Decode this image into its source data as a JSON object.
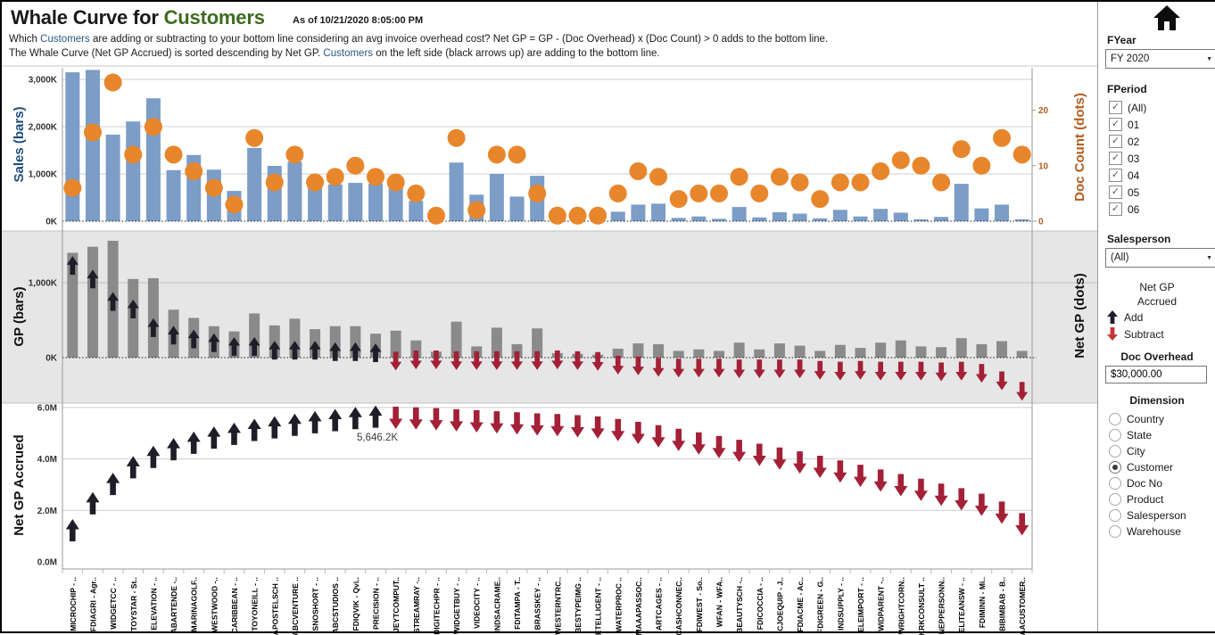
{
  "header": {
    "title_prefix": "Whale Curve for ",
    "title_dimension": "Customers",
    "as_of": "As of  10/21/2020 8:05:00 PM",
    "subtitle1_pre": "Which ",
    "subtitle1_link": "Customers",
    "subtitle1_rest": " are adding or subtracting to your bottom line considering an avg invoice overhead cost? Net GP = GP - (Doc Overhead)  x  (Doc Count) > 0 adds to the bottom line.",
    "subtitle2_pre": "The Whale Curve (Net GP Accrued) is sorted descending by Net GP.  ",
    "subtitle2_link": "Customers",
    "subtitle2_rest": " on the left side (black arrows up) are adding to the bottom line."
  },
  "filters": {
    "fyear": {
      "label": "FYear",
      "value": "FY 2020"
    },
    "fperiod": {
      "label": "FPeriod",
      "options": [
        {
          "label": "(All)",
          "checked": true
        },
        {
          "label": "01",
          "checked": true
        },
        {
          "label": "02",
          "checked": true
        },
        {
          "label": "03",
          "checked": true
        },
        {
          "label": "04",
          "checked": true
        },
        {
          "label": "05",
          "checked": true
        },
        {
          "label": "06",
          "checked": true
        }
      ]
    },
    "salesperson": {
      "label": "Salesperson",
      "value": "(All)"
    },
    "legend": {
      "title_line1": "Net GP",
      "title_line2": "Accrued",
      "add_label": "Add",
      "subtract_label": "Subtract"
    },
    "doc_overhead": {
      "label": "Doc Overhead",
      "value": "$30,000.00"
    },
    "dimension": {
      "label": "Dimension",
      "selected": "Customer",
      "options": [
        "Country",
        "State",
        "City",
        "Customer",
        "Doc No",
        "Product",
        "Salesperson",
        "Warehouse"
      ]
    }
  },
  "colors": {
    "sales_bar": "#7b9dc7",
    "doc_dot": "#e8862c",
    "gp_bar": "#8a8a8a",
    "arrow_up": "#1e1e28",
    "arrow_down": "#a32036",
    "legend_down_red": "#c63636",
    "title_green": "#3e6b21",
    "link_blue": "#2a5783",
    "sales_axis_blue": "#1f4e79",
    "doc_axis_orange": "#b35c1d",
    "band_gray": "#e6e6e6",
    "grid": "#cfcfcf"
  },
  "chart_data": {
    "type": "composite",
    "sorted_by": "Net GP descending",
    "categories": [
      "MICROCHIP - ..",
      "FDIAGRI - Agr..",
      "WIDGETCC - ..",
      "TOYSTAR - St..",
      "ELEVATION - ..",
      "ABARTENDE -..",
      "MARINAGOLF..",
      "WESTWOOD -..",
      "CARIBBEAN - ..",
      "TOYONEILL - ..",
      "APOSTELSCH ..",
      "ABCVENTURE ..",
      "SNOSHORT - ..",
      "ABCSTUDIOS ..",
      "FDIQVIK - Qvi..",
      "PRECISION - ..",
      "JEYTCOMPUT..",
      "STREAMRAY -..",
      "DIGITECHPR - ..",
      "WIDGETBUY - ..",
      "VIDEOCITY - ..",
      "INDSACRAME..",
      "FDITAMPA - T..",
      "BRASSKEY - ..",
      "WESTERNTRC..",
      "BESTYPEIMG ..",
      "ETELLIGENT - ..",
      "WATERPROC ..",
      "MAAAPASSOC..",
      "ARTCAGES - ..",
      "CASHCONNEC..",
      "FDIWEST - So..",
      "WFAN - WFA..",
      "BEAUTYSCH -..",
      "FDICOCCIA - ..",
      "CJOEQUIP - J..",
      "FDIACME - Ac..",
      "FDIGREEN - G..",
      "INDSUPPLY - ..",
      "ELEIMPORT - ..",
      "WIDPARENT -..",
      "WRIGHTCORN..",
      "KRKCONSULT ..",
      "NEPPERSONN..",
      "ELITEANSW - ..",
      "FDIMINN - Mi..",
      "BIBIMBAB - B..",
      "AACUSTOMER.."
    ],
    "panels": [
      {
        "name": "sales-and-doc-count",
        "type": "bar",
        "ylabel_left": "Sales (bars)",
        "ylabel_right": "Doc Count (dots)",
        "y_left_ticks": [
          "0K",
          "1,000K",
          "2,000K",
          "3,000K"
        ],
        "y_right_ticks": [
          0,
          10,
          20
        ],
        "y_left_max_k": 3250,
        "y_right_max": 26,
        "sales_k": [
          3150,
          3200,
          1830,
          2110,
          2600,
          1080,
          1400,
          1090,
          640,
          1550,
          1170,
          1260,
          830,
          780,
          810,
          800,
          860,
          430,
          100,
          1240,
          560,
          1000,
          520,
          960,
          80,
          60,
          50,
          200,
          350,
          370,
          70,
          100,
          50,
          300,
          80,
          190,
          160,
          60,
          240,
          100,
          260,
          180,
          40,
          90,
          790,
          270,
          350,
          40
        ],
        "doc_count": [
          6,
          16,
          25,
          12,
          17,
          12,
          9,
          6,
          3,
          15,
          7,
          12,
          7,
          8,
          10,
          8,
          7,
          5,
          1,
          15,
          2,
          12,
          12,
          5,
          1,
          1,
          1,
          5,
          9,
          8,
          4,
          5,
          5,
          8,
          5,
          8,
          7,
          4,
          7,
          7,
          9,
          11,
          10,
          7,
          13,
          10,
          15,
          12
        ]
      },
      {
        "name": "gp-and-net-gp",
        "type": "bar",
        "ylabel_left": "GP (bars)",
        "ylabel_right": "Net GP (dots)",
        "y_ticks": [
          "0K",
          "1,000K"
        ],
        "gp_k": [
          1400,
          1480,
          1560,
          1050,
          1060,
          640,
          530,
          420,
          350,
          590,
          430,
          520,
          380,
          420,
          420,
          320,
          360,
          230,
          80,
          480,
          150,
          400,
          180,
          390,
          60,
          50,
          40,
          120,
          190,
          180,
          90,
          110,
          90,
          200,
          110,
          190,
          160,
          90,
          170,
          130,
          200,
          230,
          150,
          140,
          260,
          180,
          220,
          90
        ],
        "net_gp_k": [
          1230,
          1050,
          750,
          650,
          400,
          300,
          250,
          200,
          150,
          150,
          100,
          100,
          100,
          80,
          80,
          66,
          -46,
          -30,
          -30,
          -40,
          -40,
          -40,
          -40,
          -40,
          -30,
          -40,
          -50,
          -100,
          -110,
          -130,
          -140,
          -140,
          -140,
          -150,
          -150,
          -150,
          -150,
          -170,
          -180,
          -170,
          -180,
          -180,
          -180,
          -190,
          -180,
          -210,
          -310,
          -450
        ]
      },
      {
        "name": "net-gp-accrued",
        "type": "scatter",
        "ylabel_left": "Net GP Accrued",
        "y_ticks": [
          "0.0M",
          "2.0M",
          "4.0M",
          "6.0M"
        ],
        "add_count": 16,
        "subtract_count": 32,
        "accrued_m": [
          1.23,
          2.28,
          3.03,
          3.68,
          4.08,
          4.38,
          4.63,
          4.83,
          4.98,
          5.13,
          5.23,
          5.33,
          5.43,
          5.51,
          5.59,
          5.646,
          5.6,
          5.57,
          5.54,
          5.5,
          5.46,
          5.42,
          5.38,
          5.34,
          5.31,
          5.27,
          5.22,
          5.12,
          5.01,
          4.88,
          4.74,
          4.6,
          4.46,
          4.31,
          4.16,
          4.01,
          3.86,
          3.69,
          3.51,
          3.34,
          3.16,
          2.98,
          2.8,
          2.61,
          2.43,
          2.22,
          1.91,
          1.46
        ],
        "annotation": {
          "text": "5,646.2K",
          "at_category": "PRECISION - ..",
          "index": 15
        }
      }
    ]
  }
}
